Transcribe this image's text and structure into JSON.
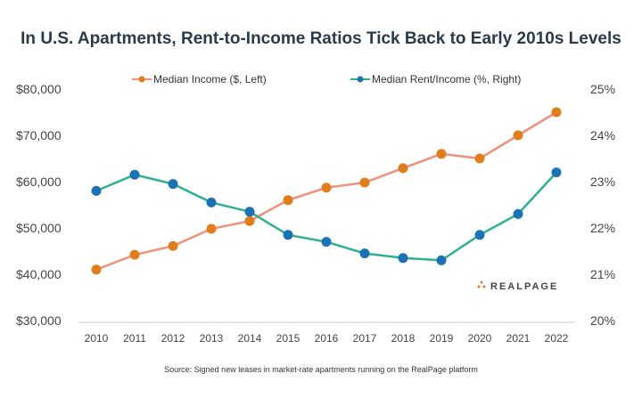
{
  "chart_data": {
    "type": "line",
    "title": "In U.S. Apartments, Rent-to-Income Ratios Tick Back to Early 2010s Levels",
    "x": [
      2010,
      2011,
      2012,
      2013,
      2014,
      2015,
      2016,
      2017,
      2018,
      2019,
      2020,
      2021,
      2022
    ],
    "series": [
      {
        "name": "Median Income ($, Left)",
        "axis": "left",
        "line_color": "#f0907a",
        "marker_color": "#e07d1c",
        "values": [
          41000,
          44200,
          46100,
          49800,
          51500,
          56000,
          58700,
          59800,
          62900,
          66000,
          65000,
          70000,
          75000
        ]
      },
      {
        "name": "Median Rent/Income (%, Right)",
        "axis": "right",
        "line_color": "#2fb08e",
        "marker_color": "#1b72b4",
        "values": [
          22.8,
          23.15,
          22.95,
          22.55,
          22.35,
          21.85,
          21.7,
          21.45,
          21.35,
          21.3,
          21.85,
          22.3,
          23.2
        ]
      }
    ],
    "left_axis": {
      "ylim": [
        30000,
        80000
      ],
      "ticks": [
        "$30,000",
        "$40,000",
        "$50,000",
        "$60,000",
        "$70,000",
        "$80,000"
      ]
    },
    "right_axis": {
      "ylim": [
        20,
        25
      ],
      "ticks": [
        "20%",
        "21%",
        "22%",
        "23%",
        "24%",
        "25%"
      ]
    },
    "legend_placement": "top",
    "grid": false,
    "source": "Source: Signed new leases in market-rate apartments running on the RealPage platform",
    "logo": "REALPAGE"
  }
}
